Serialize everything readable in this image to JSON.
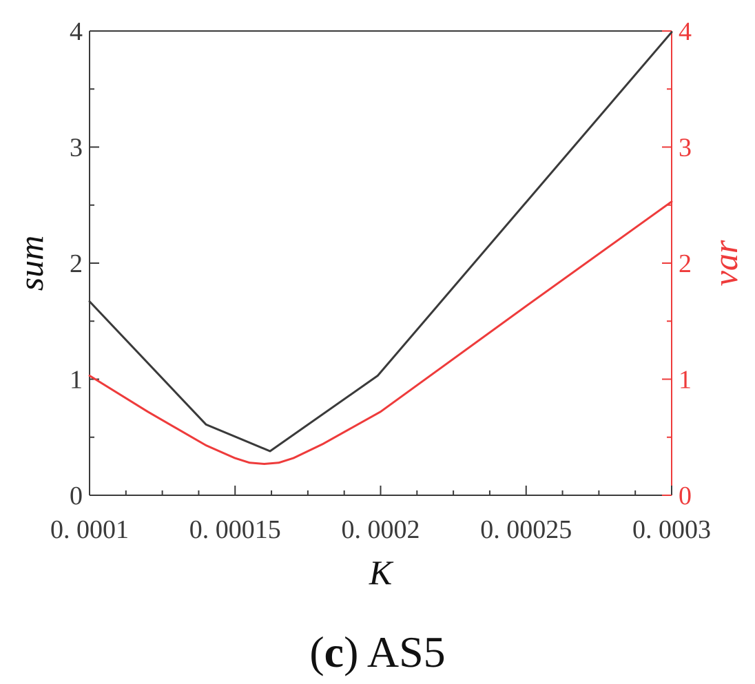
{
  "chart_data": {
    "type": "line",
    "xlabel": "K",
    "ylabel": "sum",
    "y2label": "var",
    "caption_letter": "c",
    "caption_text": " AS5",
    "xlim": [
      0.0001,
      0.0003
    ],
    "ylim": [
      0,
      4
    ],
    "y2lim": [
      0,
      4
    ],
    "x_ticks": [
      0.0001,
      0.00015,
      0.0002,
      0.00025,
      0.0003
    ],
    "x_tick_labels": [
      "0. 0001",
      "0. 00015",
      "0. 0002",
      "0. 00025",
      "0. 0003"
    ],
    "y_ticks": [
      0,
      1,
      2,
      3,
      4
    ],
    "y_tick_labels": [
      "0",
      "1",
      "2",
      "3",
      "4"
    ],
    "y2_tick_labels": [
      "0",
      "1",
      "2",
      "3",
      "4"
    ],
    "grid": false,
    "colors": {
      "sum": "#3a3a3a",
      "var": "#ee3b3b",
      "axis": "#3a3a3a",
      "axis2": "#ee3b3b"
    },
    "series": [
      {
        "key": "sum",
        "axis": "left",
        "x": [
          0.0001,
          0.00014,
          0.000162,
          0.000199,
          0.0003
        ],
        "values": [
          1.67,
          0.61,
          0.38,
          1.03,
          3.99
        ]
      },
      {
        "key": "var",
        "axis": "right",
        "x": [
          0.0001,
          0.00012,
          0.00014,
          0.00015,
          0.000155,
          0.00016,
          0.000165,
          0.00017,
          0.00018,
          0.0002,
          0.00025,
          0.0003
        ],
        "values": [
          1.03,
          0.72,
          0.43,
          0.32,
          0.28,
          0.27,
          0.28,
          0.32,
          0.44,
          0.72,
          1.63,
          2.53
        ]
      }
    ]
  }
}
